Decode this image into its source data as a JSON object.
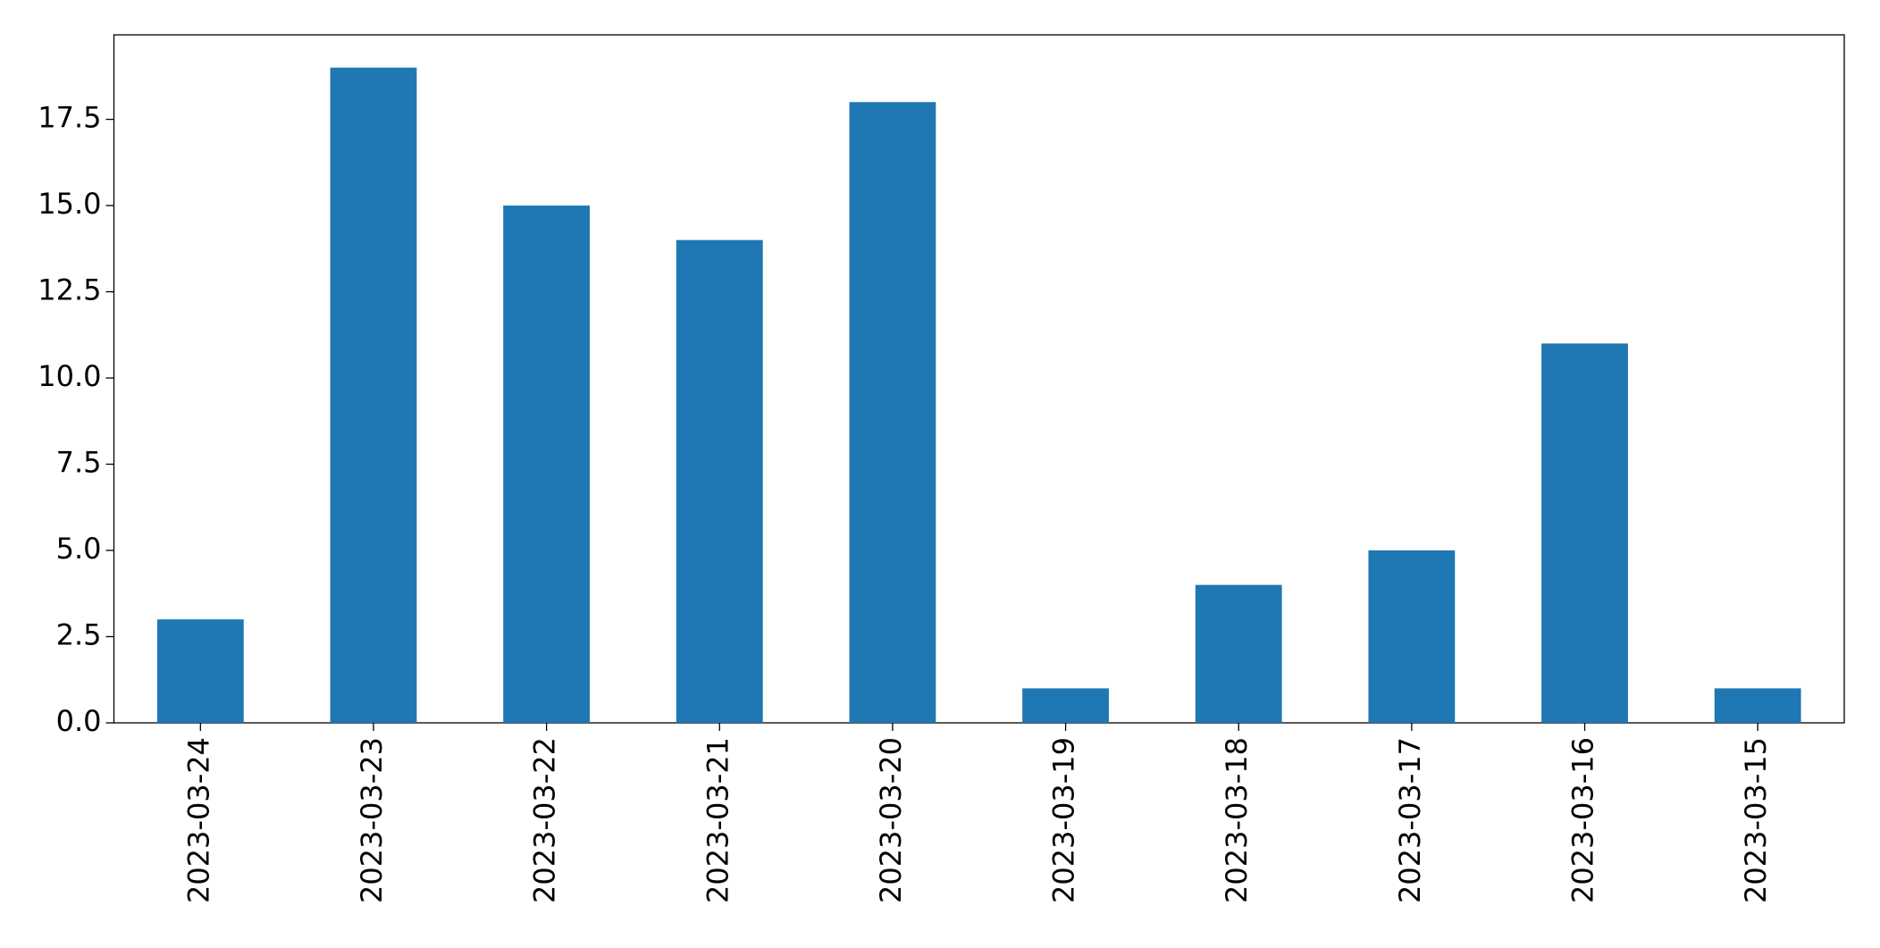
{
  "chart_data": {
    "type": "bar",
    "categories": [
      "2023-03-24",
      "2023-03-23",
      "2023-03-22",
      "2023-03-21",
      "2023-03-20",
      "2023-03-19",
      "2023-03-18",
      "2023-03-17",
      "2023-03-16",
      "2023-03-15"
    ],
    "values": [
      3,
      19,
      15,
      14,
      18,
      1,
      4,
      5,
      11,
      1
    ],
    "color": "#1f77b4",
    "ylim": [
      0,
      19.95
    ],
    "yticks": [
      {
        "value": 0,
        "label": "0.0"
      },
      {
        "value": 2.5,
        "label": "2.5"
      },
      {
        "value": 5,
        "label": "5.0"
      },
      {
        "value": 7.5,
        "label": "7.5"
      },
      {
        "value": 10,
        "label": "10.0"
      },
      {
        "value": 12.5,
        "label": "12.5"
      },
      {
        "value": 15,
        "label": "15.0"
      },
      {
        "value": 17.5,
        "label": "17.5"
      }
    ],
    "grid": false
  }
}
